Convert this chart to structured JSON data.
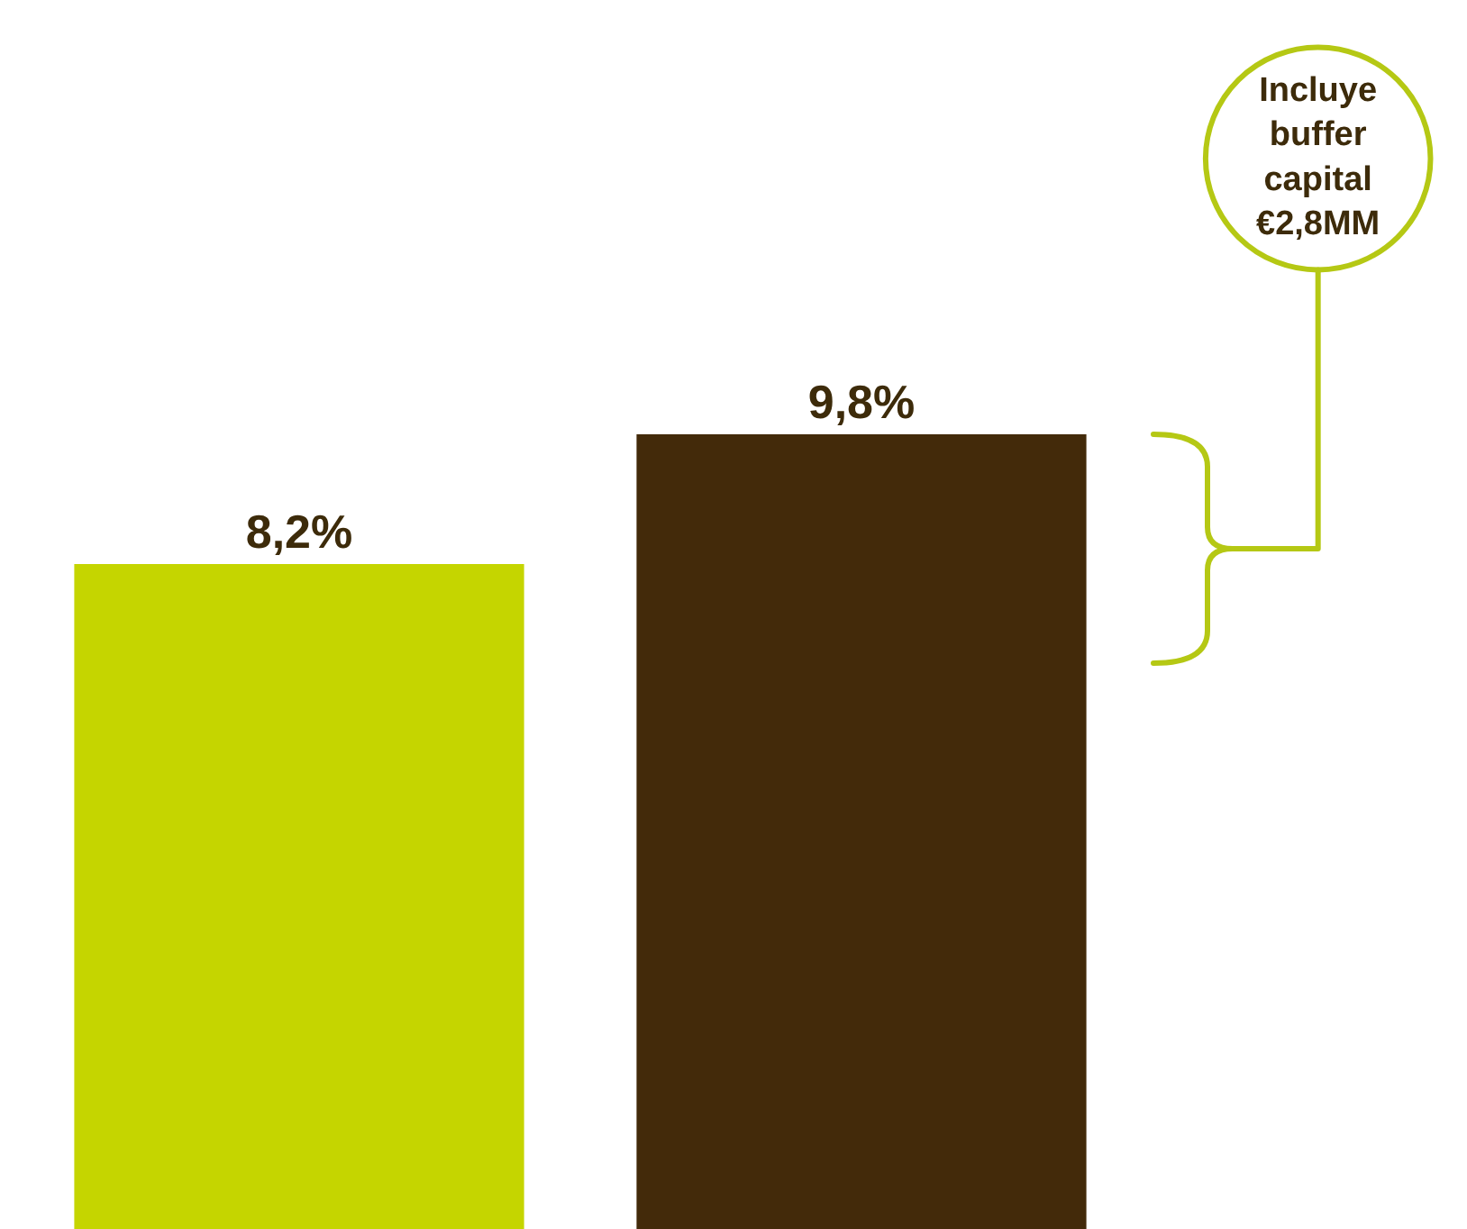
{
  "chart_data": {
    "type": "bar",
    "categories": [
      null,
      null
    ],
    "values": [
      8.2,
      9.8
    ],
    "colors": [
      "#c5d500",
      "#432a0a"
    ],
    "value_labels": [
      "8,2%",
      "9,8%"
    ],
    "annotations": [
      "Incluye buffer capital €2,8MM"
    ]
  }
}
